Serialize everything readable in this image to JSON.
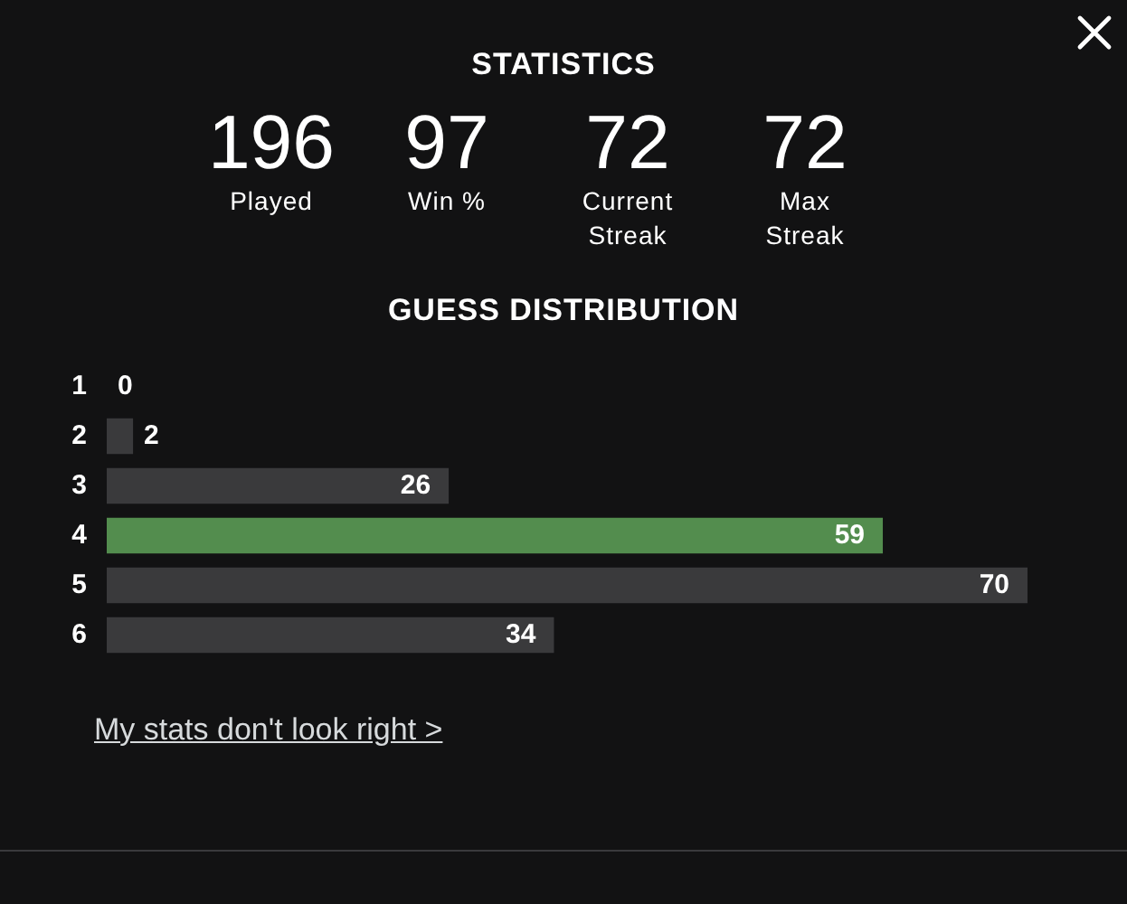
{
  "chart_data": [
    {
      "type": "other",
      "title": "STATISTICS",
      "annotations": [
        "196",
        "Played",
        "97",
        "Win %",
        "72",
        "Current Streak",
        "72",
        "Max Streak"
      ]
    },
    {
      "type": "bar",
      "title": "GUESS DISTRIBUTION",
      "orientation": "horizontal",
      "categories": [
        "1",
        "2",
        "3",
        "4",
        "5",
        "6"
      ],
      "values": [
        0,
        2,
        26,
        59,
        70,
        34
      ],
      "colors": [
        "#3a3a3c",
        "#3a3a3c",
        "#3a3a3c",
        "#538d4e",
        "#3a3a3c",
        "#3a3a3c"
      ],
      "data_labels": true,
      "tick_labels": "y",
      "annotations": [
        "My stats don't look right >"
      ]
    }
  ]
}
